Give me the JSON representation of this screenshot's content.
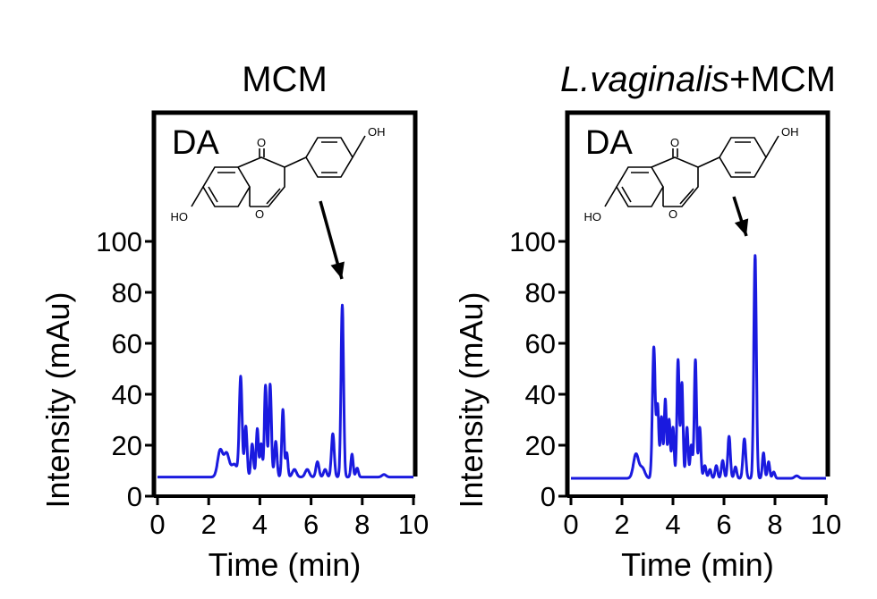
{
  "chart_data": [
    {
      "type": "line",
      "title": "MCM",
      "title_italic": "",
      "inset_label": "DA",
      "xlabel": "Time (min)",
      "ylabel": "Intensity (mAu)",
      "xlim": [
        0,
        10
      ],
      "ylim": [
        0,
        100
      ],
      "xticks": [
        0,
        2,
        4,
        6,
        8,
        10
      ],
      "yticks": [
        0,
        20,
        40,
        60,
        80,
        100
      ],
      "grid": false,
      "series_color": "#1a1adf",
      "baseline": 7.5,
      "peaks": [
        {
          "rt": 2.45,
          "height": 10.5,
          "width": 0.1
        },
        {
          "rt": 2.7,
          "height": 9.0,
          "width": 0.1
        },
        {
          "rt": 3.0,
          "height": 5.0,
          "width": 0.12
        },
        {
          "rt": 3.25,
          "height": 39.0,
          "width": 0.055
        },
        {
          "rt": 3.45,
          "height": 20.0,
          "width": 0.05
        },
        {
          "rt": 3.7,
          "height": 13.0,
          "width": 0.05
        },
        {
          "rt": 3.9,
          "height": 19.0,
          "width": 0.045
        },
        {
          "rt": 4.05,
          "height": 13.0,
          "width": 0.045
        },
        {
          "rt": 4.22,
          "height": 36.0,
          "width": 0.045
        },
        {
          "rt": 4.4,
          "height": 36.5,
          "width": 0.05
        },
        {
          "rt": 4.62,
          "height": 14.0,
          "width": 0.05
        },
        {
          "rt": 4.9,
          "height": 26.5,
          "width": 0.045
        },
        {
          "rt": 5.05,
          "height": 9.5,
          "width": 0.045
        },
        {
          "rt": 5.35,
          "height": 3.0,
          "width": 0.08
        },
        {
          "rt": 5.85,
          "height": 3.0,
          "width": 0.08
        },
        {
          "rt": 6.25,
          "height": 6.0,
          "width": 0.06
        },
        {
          "rt": 6.55,
          "height": 3.0,
          "width": 0.06
        },
        {
          "rt": 6.85,
          "height": 17.0,
          "width": 0.055
        },
        {
          "rt": 7.22,
          "height": 67.5,
          "width": 0.05
        },
        {
          "rt": 7.6,
          "height": 9.0,
          "width": 0.045
        },
        {
          "rt": 7.8,
          "height": 3.5,
          "width": 0.05
        },
        {
          "rt": 8.85,
          "height": 1.0,
          "width": 0.08
        }
      ],
      "annotation": "arrow pointing to peak at ~7.2 min"
    },
    {
      "type": "line",
      "title": "+MCM",
      "title_italic": "L.vaginalis",
      "inset_label": "DA",
      "xlabel": "Time (min)",
      "ylabel": "Intensity (mAu)",
      "xlim": [
        0,
        10
      ],
      "ylim": [
        0,
        100
      ],
      "xticks": [
        0,
        2,
        4,
        6,
        8,
        10
      ],
      "yticks": [
        0,
        20,
        40,
        60,
        80,
        100
      ],
      "grid": false,
      "series_color": "#1a1adf",
      "baseline": 7.0,
      "peaks": [
        {
          "rt": 2.55,
          "height": 9.5,
          "width": 0.1
        },
        {
          "rt": 2.8,
          "height": 4.0,
          "width": 0.1
        },
        {
          "rt": 3.25,
          "height": 51.5,
          "width": 0.055
        },
        {
          "rt": 3.4,
          "height": 28.0,
          "width": 0.045
        },
        {
          "rt": 3.55,
          "height": 24.0,
          "width": 0.045
        },
        {
          "rt": 3.7,
          "height": 31.0,
          "width": 0.045
        },
        {
          "rt": 3.85,
          "height": 23.0,
          "width": 0.045
        },
        {
          "rt": 4.0,
          "height": 20.0,
          "width": 0.045
        },
        {
          "rt": 4.2,
          "height": 46.5,
          "width": 0.045
        },
        {
          "rt": 4.35,
          "height": 37.5,
          "width": 0.045
        },
        {
          "rt": 4.55,
          "height": 20.0,
          "width": 0.045
        },
        {
          "rt": 4.72,
          "height": 13.0,
          "width": 0.045
        },
        {
          "rt": 4.88,
          "height": 46.5,
          "width": 0.045
        },
        {
          "rt": 5.05,
          "height": 20.0,
          "width": 0.045
        },
        {
          "rt": 5.25,
          "height": 5.0,
          "width": 0.05
        },
        {
          "rt": 5.45,
          "height": 3.5,
          "width": 0.05
        },
        {
          "rt": 5.7,
          "height": 5.0,
          "width": 0.05
        },
        {
          "rt": 5.95,
          "height": 7.0,
          "width": 0.05
        },
        {
          "rt": 6.2,
          "height": 16.5,
          "width": 0.05
        },
        {
          "rt": 6.45,
          "height": 4.5,
          "width": 0.05
        },
        {
          "rt": 6.8,
          "height": 15.5,
          "width": 0.055
        },
        {
          "rt": 7.22,
          "height": 87.5,
          "width": 0.05
        },
        {
          "rt": 7.55,
          "height": 10.0,
          "width": 0.045
        },
        {
          "rt": 7.75,
          "height": 6.5,
          "width": 0.045
        },
        {
          "rt": 7.95,
          "height": 2.5,
          "width": 0.05
        },
        {
          "rt": 8.85,
          "height": 1.0,
          "width": 0.08
        }
      ],
      "annotation": "arrow pointing to peak at ~7.2 min"
    }
  ],
  "chem": {
    "oh_label": "OH",
    "ho_label": "HO",
    "o_label": "O"
  },
  "colors": {
    "trace": "#1a1adf",
    "axis": "#000000"
  }
}
